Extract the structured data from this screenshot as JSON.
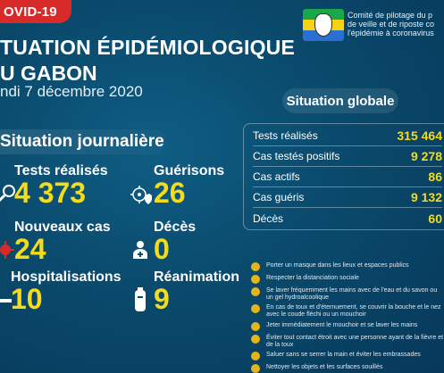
{
  "header": {
    "badge": "OVID-19",
    "title_line1": "TUATION ÉPIDÉMIOLOGIQUE",
    "title_line2": "U GABON",
    "date": "ndi 7 décembre 2020"
  },
  "committee": {
    "line1": "Comité de pilotage du p",
    "line2": "de veille et de riposte co",
    "line3": "l'épidémie à coronavirus"
  },
  "daily": {
    "heading": "Situation journalière",
    "tests": {
      "label": "Tests réalisés",
      "value": "4 373"
    },
    "recoveries": {
      "label": "Guérisons",
      "value": "26"
    },
    "new_cases": {
      "label": "Nouveaux cas",
      "value": "24"
    },
    "deaths": {
      "label": "Décès",
      "value": "0"
    },
    "hospitalisations": {
      "label": "Hospitalisations",
      "value": "10"
    },
    "icu": {
      "label": "Réanimation",
      "value": "9"
    }
  },
  "global": {
    "heading": "Situation globale",
    "rows": [
      {
        "label": "Tests réalisés",
        "value": "315 464"
      },
      {
        "label": "Cas testés positifs",
        "value": "9 278"
      },
      {
        "label": "Cas actifs",
        "value": "86"
      },
      {
        "label": "Cas guéris",
        "value": "9 132"
      },
      {
        "label": "Décès",
        "value": "60"
      }
    ]
  },
  "advice": [
    "Porter un masque dans les lieux et espaces publics",
    "Respecter la distanciation sociale",
    "Se laver fréquemment les mains avec de l'eau et du savon ou un gel hydroalcoolique",
    "En cas de toux et d'éternuement, se couvrir la bouche et le nez avec le coude fléchi ou un mouchoir",
    "Jeter immédiatement le mouchoir et se laver les mains",
    "Éviter tout contact étroit avec une personne ayant de la fièvre et de la toux",
    "Saluer sans se serrer la main et éviter les embrassades",
    "Nettoyer les objets et les surfaces souillés"
  ],
  "colors": {
    "accent": "#f4dc1c",
    "badge": "#d92a2a",
    "background": "#0a4a6c"
  }
}
